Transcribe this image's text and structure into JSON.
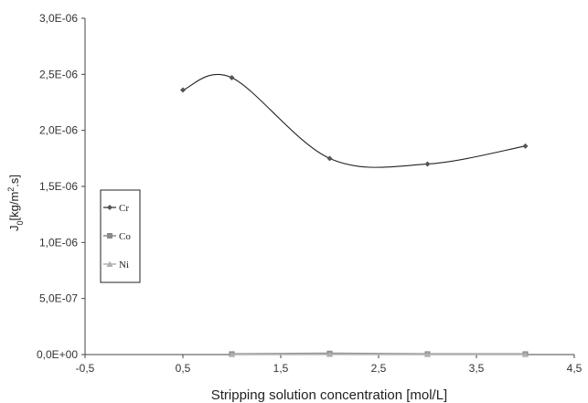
{
  "chart_data": {
    "type": "line",
    "xlabel": "Stripping solution concentration [mol/L]",
    "ylabel_parts": {
      "main": "J",
      "sub": "0",
      "unit1": "[kg/m",
      "sup": "2",
      "unit2": ".s]"
    },
    "xlim": [
      -0.5,
      4.5
    ],
    "ylim": [
      0,
      3e-06
    ],
    "x_ticks": [
      -0.5,
      0.5,
      1.5,
      2.5,
      3.5,
      4.5
    ],
    "x_tick_labels": [
      "-0,5",
      "0,5",
      "1,5",
      "2,5",
      "3,5",
      "4,5"
    ],
    "y_ticks": [
      0,
      5e-07,
      1e-06,
      1.5e-06,
      2e-06,
      2.5e-06,
      3e-06
    ],
    "y_tick_labels": [
      "0,0E+00",
      "5,0E-07",
      "1,0E-06",
      "1,5E-06",
      "2,0E-06",
      "2,5E-06",
      "3,0E-06"
    ],
    "grid": false,
    "legend_position": "left",
    "series": [
      {
        "name": "Cr",
        "marker": "diamond",
        "color": "#555555",
        "smooth": true,
        "x": [
          0.5,
          1,
          2,
          3,
          4
        ],
        "y": [
          2.36e-06,
          2.47e-06,
          1.75e-06,
          1.7e-06,
          1.86e-06
        ]
      },
      {
        "name": "Co",
        "marker": "square",
        "color": "#8a8a8a",
        "smooth": false,
        "x": [
          1,
          2,
          3,
          4
        ],
        "y": [
          5e-09,
          1e-08,
          5e-09,
          5e-09
        ]
      },
      {
        "name": "Ni",
        "marker": "triangle",
        "color": "#b0b0b0",
        "smooth": false,
        "x": [
          1,
          2,
          3,
          4
        ],
        "y": [
          2e-09,
          3e-09,
          2e-09,
          2e-09
        ]
      }
    ]
  }
}
